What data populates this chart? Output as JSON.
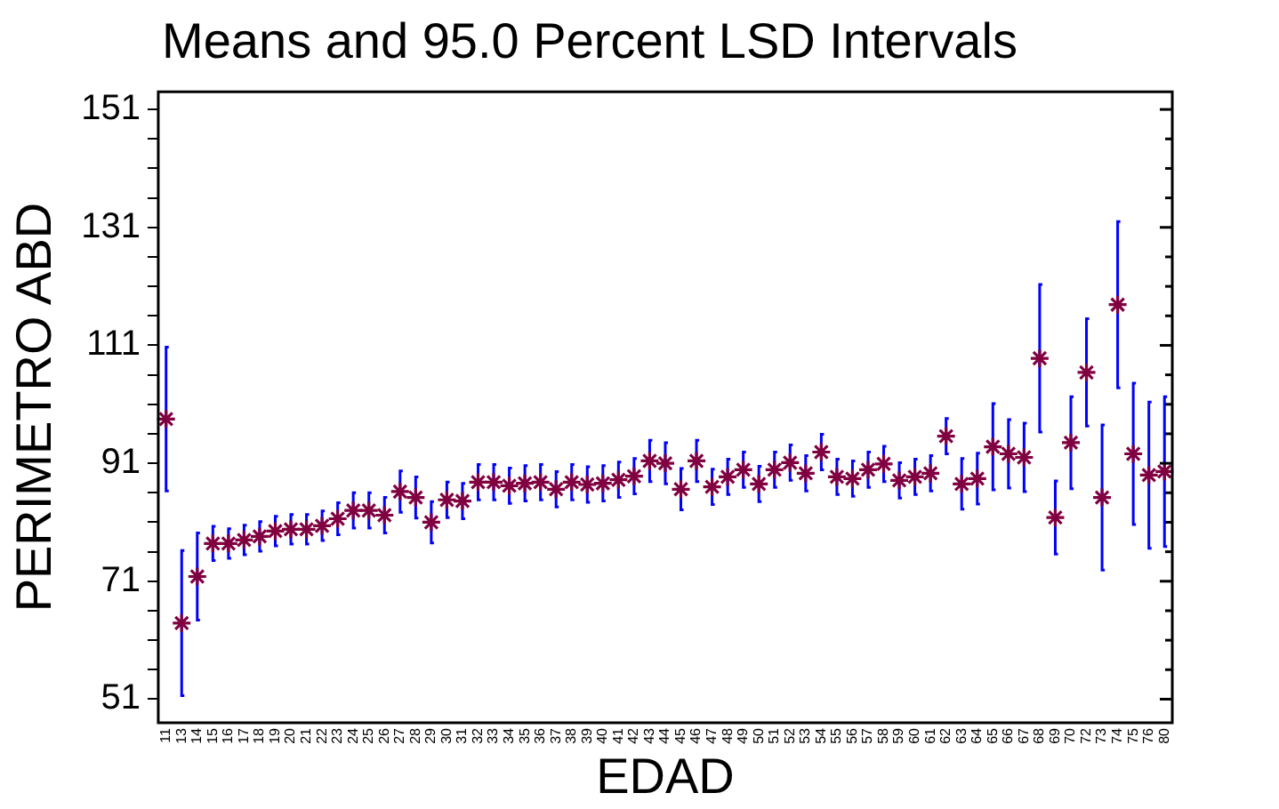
{
  "chart_data": {
    "type": "scatter",
    "title": "Means and 95.0 Percent LSD Intervals",
    "xlabel": "EDAD",
    "ylabel": "PERIMETRO ABD",
    "categories": [
      "11",
      "13",
      "14",
      "15",
      "16",
      "17",
      "18",
      "19",
      "20",
      "21",
      "22",
      "23",
      "24",
      "25",
      "26",
      "27",
      "28",
      "29",
      "30",
      "31",
      "32",
      "33",
      "34",
      "35",
      "36",
      "37",
      "38",
      "39",
      "40",
      "41",
      "42",
      "43",
      "44",
      "45",
      "46",
      "47",
      "48",
      "49",
      "50",
      "51",
      "52",
      "53",
      "54",
      "55",
      "56",
      "57",
      "58",
      "59",
      "60",
      "61",
      "62",
      "63",
      "64",
      "65",
      "66",
      "67",
      "68",
      "69",
      "70",
      "72",
      "73",
      "74",
      "75",
      "76",
      "80"
    ],
    "series": [
      {
        "color": "#800040",
        "values": [
          98.5,
          63.9,
          71.8,
          77.4,
          77.4,
          78.0,
          78.6,
          79.5,
          79.8,
          79.8,
          80.4,
          81.6,
          83.0,
          83.0,
          82.2,
          86.2,
          85.2,
          81.0,
          84.8,
          84.6,
          87.8,
          87.8,
          87.2,
          87.6,
          87.8,
          86.6,
          87.8,
          87.4,
          87.6,
          88.2,
          88.8,
          91.4,
          91.0,
          86.6,
          91.4,
          87.0,
          88.7,
          89.9,
          87.5,
          89.9,
          91.1,
          89.3,
          92.9,
          88.7,
          88.4,
          89.9,
          90.9,
          88.1,
          88.7,
          89.3,
          95.6,
          87.5,
          88.4,
          93.8,
          92.6,
          92.0,
          108.8,
          81.8,
          94.5,
          106.4,
          85.2,
          117.9,
          92.6,
          89.0,
          89.6
        ],
        "errors": [
          12.2,
          12.3,
          7.4,
          2.9,
          2.5,
          2.5,
          2.5,
          2.5,
          2.5,
          2.5,
          2.5,
          2.7,
          3.0,
          3.0,
          3.0,
          3.5,
          3.5,
          3.5,
          3.0,
          3.0,
          3.0,
          3.0,
          3.0,
          3.0,
          3.0,
          3.0,
          3.0,
          3.0,
          3.0,
          3.0,
          3.0,
          3.5,
          3.5,
          3.5,
          3.5,
          3.0,
          3.0,
          3.0,
          3.0,
          3.0,
          3.0,
          3.0,
          3.0,
          3.0,
          3.0,
          3.0,
          3.0,
          3.0,
          3.0,
          3.0,
          3.0,
          4.3,
          4.3,
          7.3,
          5.8,
          5.8,
          12.5,
          6.2,
          7.8,
          9.1,
          12.3,
          14.1,
          12.0,
          12.4,
          12.7
        ]
      }
    ],
    "marker": "cross",
    "ylim": [
      47,
      154
    ],
    "yticks": [
      51,
      {
        "value": 56,
        "label": null
      },
      {
        "value": 61,
        "label": null
      },
      {
        "value": 66,
        "label": null
      },
      71,
      {
        "value": 76,
        "label": null
      },
      {
        "value": 81,
        "label": null
      },
      {
        "value": 86,
        "label": null
      },
      91,
      {
        "value": 96,
        "label": null
      },
      {
        "value": 101,
        "label": null
      },
      {
        "value": 106,
        "label": null
      },
      111,
      {
        "value": 116,
        "label": null
      },
      {
        "value": 121,
        "label": null
      },
      {
        "value": 126,
        "label": null
      },
      131,
      {
        "value": 136,
        "label": null
      },
      {
        "value": 141,
        "label": null
      },
      {
        "value": 146,
        "label": null
      },
      151
    ]
  }
}
